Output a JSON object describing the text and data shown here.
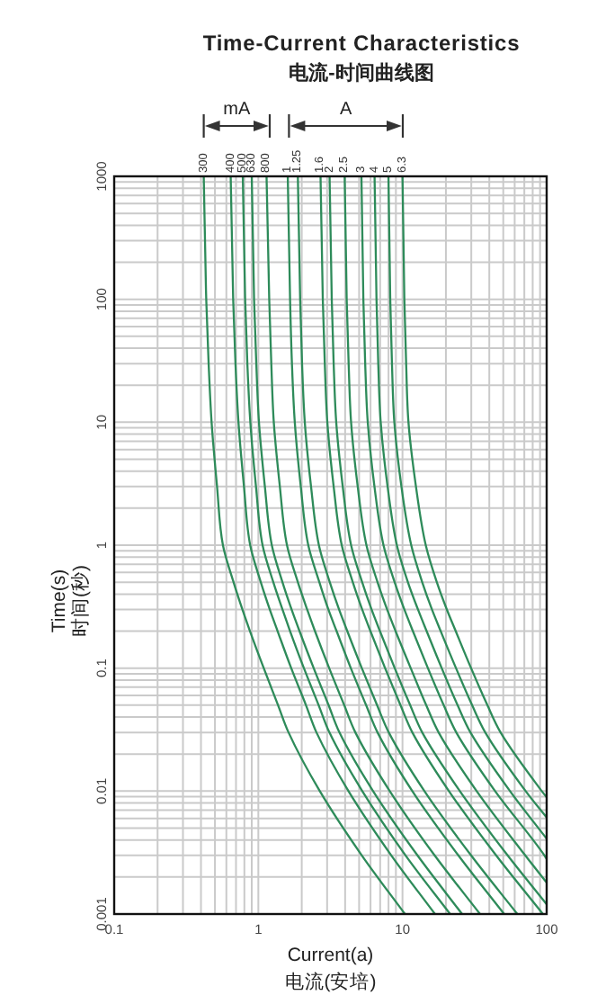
{
  "chart_data": {
    "type": "line",
    "title": "Time-Current Characteristics",
    "subtitle": "电流-时间曲线图",
    "xlabel": "Current(a)\n电流(安培)",
    "ylabel": "Time(s)\n时间(秒)",
    "log": "xy",
    "xlim": [
      0.1,
      100
    ],
    "ylim": [
      0.001,
      1000
    ],
    "xticks": [
      0.1,
      1,
      10,
      100
    ],
    "yticks": [
      0.001,
      0.01,
      0.1,
      1,
      10,
      100,
      1000
    ],
    "grid": true,
    "annotations": [
      "mA",
      "A"
    ],
    "series": [
      {
        "name": "300",
        "color": "#2e8b5a",
        "x": [
          0.418,
          0.435,
          0.452,
          0.474,
          0.517,
          0.568,
          0.673,
          0.775,
          0.875,
          1.09,
          1.37,
          1.62,
          2.67,
          5.22,
          10.4
        ],
        "values": [
          1000,
          100,
          30,
          10,
          3,
          1,
          0.5,
          0.3,
          0.2,
          0.1,
          0.05,
          0.03,
          0.01,
          0.003,
          0.001
        ]
      },
      {
        "name": "400",
        "color": "#2e8b5a",
        "x": [
          0.643,
          0.669,
          0.694,
          0.728,
          0.795,
          0.878,
          1.04,
          1.2,
          1.36,
          1.69,
          2.14,
          2.53,
          4.22,
          8.36,
          16.8
        ],
        "values": [
          1000,
          100,
          30,
          10,
          3,
          1,
          0.5,
          0.3,
          0.2,
          0.1,
          0.05,
          0.03,
          0.01,
          0.003,
          0.001
        ]
      },
      {
        "name": "500",
        "color": "#2e8b5a",
        "x": [
          0.78,
          0.81,
          0.839,
          0.88,
          0.963,
          1.07,
          1.27,
          1.47,
          1.66,
          2.07,
          2.62,
          3.11,
          5.26,
          10.5,
          21.4
        ],
        "values": [
          1000,
          100,
          30,
          10,
          3,
          1,
          0.5,
          0.3,
          0.2,
          0.1,
          0.05,
          0.03,
          0.01,
          0.003,
          0.001
        ]
      },
      {
        "name": "630",
        "color": "#2e8b5a",
        "x": [
          0.9,
          0.934,
          0.968,
          1.01,
          1.11,
          1.24,
          1.47,
          1.7,
          1.93,
          2.42,
          3.07,
          3.65,
          6.25,
          12.7,
          25.9
        ],
        "values": [
          1000,
          100,
          30,
          10,
          3,
          1,
          0.5,
          0.3,
          0.2,
          0.1,
          0.05,
          0.03,
          0.01,
          0.003,
          0.001
        ]
      },
      {
        "name": "800",
        "color": "#2e8b5a",
        "x": [
          1.14,
          1.19,
          1.23,
          1.28,
          1.41,
          1.58,
          1.88,
          2.18,
          2.47,
          3.1,
          3.94,
          4.71,
          8.16,
          16.7,
          34.5
        ],
        "values": [
          1000,
          100,
          30,
          10,
          3,
          1,
          0.5,
          0.3,
          0.2,
          0.1,
          0.05,
          0.03,
          0.01,
          0.003,
          0.001
        ]
      },
      {
        "name": "1",
        "color": "#2e8b5a",
        "x": [
          1.6,
          1.66,
          1.71,
          1.79,
          1.97,
          2.22,
          2.65,
          3.06,
          3.49,
          4.38,
          5.59,
          6.71,
          11.7,
          24.4,
          50.7
        ],
        "values": [
          1000,
          100,
          30,
          10,
          3,
          1,
          0.5,
          0.3,
          0.2,
          0.1,
          0.05,
          0.03,
          0.01,
          0.003,
          0.001
        ]
      },
      {
        "name": "1.25",
        "color": "#2e8b5a",
        "x": [
          1.88,
          1.95,
          2.01,
          2.1,
          2.32,
          2.63,
          3.13,
          3.63,
          4.14,
          5.22,
          6.66,
          8.03,
          14.2,
          29.9,
          62.6
        ],
        "values": [
          1000,
          100,
          30,
          10,
          3,
          1,
          0.5,
          0.3,
          0.2,
          0.1,
          0.05,
          0.03,
          0.01,
          0.003,
          0.001
        ]
      },
      {
        "name": "1.6",
        "color": "#2e8b5a",
        "x": [
          2.7,
          2.8,
          2.89,
          3.01,
          3.33,
          3.79,
          4.52,
          5.25,
          5.99,
          7.57,
          9.68,
          11.7,
          21.0,
          44.6,
          94.2
        ],
        "values": [
          1000,
          100,
          30,
          10,
          3,
          1,
          0.5,
          0.3,
          0.2,
          0.1,
          0.05,
          0.03,
          0.01,
          0.003,
          0.001
        ]
      },
      {
        "name": "2",
        "color": "#2e8b5a",
        "x": [
          3.12,
          3.23,
          3.33,
          3.47,
          3.85,
          4.4,
          5.25,
          6.1,
          6.97,
          8.83,
          11.3,
          13.7,
          25.0,
          53.6,
          100
        ],
        "values": [
          1000,
          100,
          30,
          10,
          3,
          1,
          0.5,
          0.3,
          0.2,
          0.1,
          0.05,
          0.03,
          0.01,
          0.003,
          0.0012
        ]
      },
      {
        "name": "2.5",
        "color": "#2e8b5a",
        "x": [
          3.97,
          4.1,
          4.23,
          4.4,
          4.89,
          5.62,
          6.71,
          7.82,
          8.95,
          11.4,
          14.6,
          17.8,
          32.7,
          71.0,
          100
        ],
        "values": [
          1000,
          100,
          30,
          10,
          3,
          1,
          0.5,
          0.3,
          0.2,
          0.1,
          0.05,
          0.03,
          0.01,
          0.003,
          0.0018
        ]
      },
      {
        "name": "3",
        "color": "#2e8b5a",
        "x": [
          5.19,
          5.35,
          5.51,
          5.74,
          6.39,
          7.38,
          8.82,
          10.3,
          11.8,
          15.0,
          19.3,
          23.6,
          43.9,
          96.5,
          100
        ],
        "values": [
          1000,
          100,
          30,
          10,
          3,
          1,
          0.5,
          0.3,
          0.2,
          0.1,
          0.05,
          0.03,
          0.01,
          0.003,
          0.0028
        ]
      },
      {
        "name": "4",
        "color": "#2e8b5a",
        "x": [
          6.4,
          6.6,
          6.79,
          7.06,
          7.88,
          9.14,
          10.9,
          12.8,
          14.7,
          18.7,
          24.1,
          29.6,
          55.7,
          100
        ],
        "values": [
          1000,
          100,
          30,
          10,
          3,
          1,
          0.5,
          0.3,
          0.2,
          0.1,
          0.05,
          0.03,
          0.01,
          0.0041
        ]
      },
      {
        "name": "5",
        "color": "#2e8b5a",
        "x": [
          7.99,
          8.22,
          8.45,
          8.78,
          9.83,
          11.5,
          13.7,
          16.0,
          18.4,
          23.5,
          30.4,
          37.5,
          71.5,
          100
        ],
        "values": [
          1000,
          100,
          30,
          10,
          3,
          1,
          0.5,
          0.3,
          0.2,
          0.1,
          0.05,
          0.03,
          0.01,
          0.0061
        ]
      },
      {
        "name": "6.3",
        "color": "#2e8b5a",
        "x": [
          10.0,
          10.3,
          10.6,
          11.0,
          12.4,
          14.5,
          17.3,
          20.3,
          23.4,
          29.9,
          38.8,
          47.9,
          92.5,
          100
        ],
        "values": [
          1000,
          100,
          30,
          10,
          3,
          1,
          0.5,
          0.3,
          0.2,
          0.1,
          0.05,
          0.03,
          0.01,
          0.0089
        ]
      }
    ]
  }
}
